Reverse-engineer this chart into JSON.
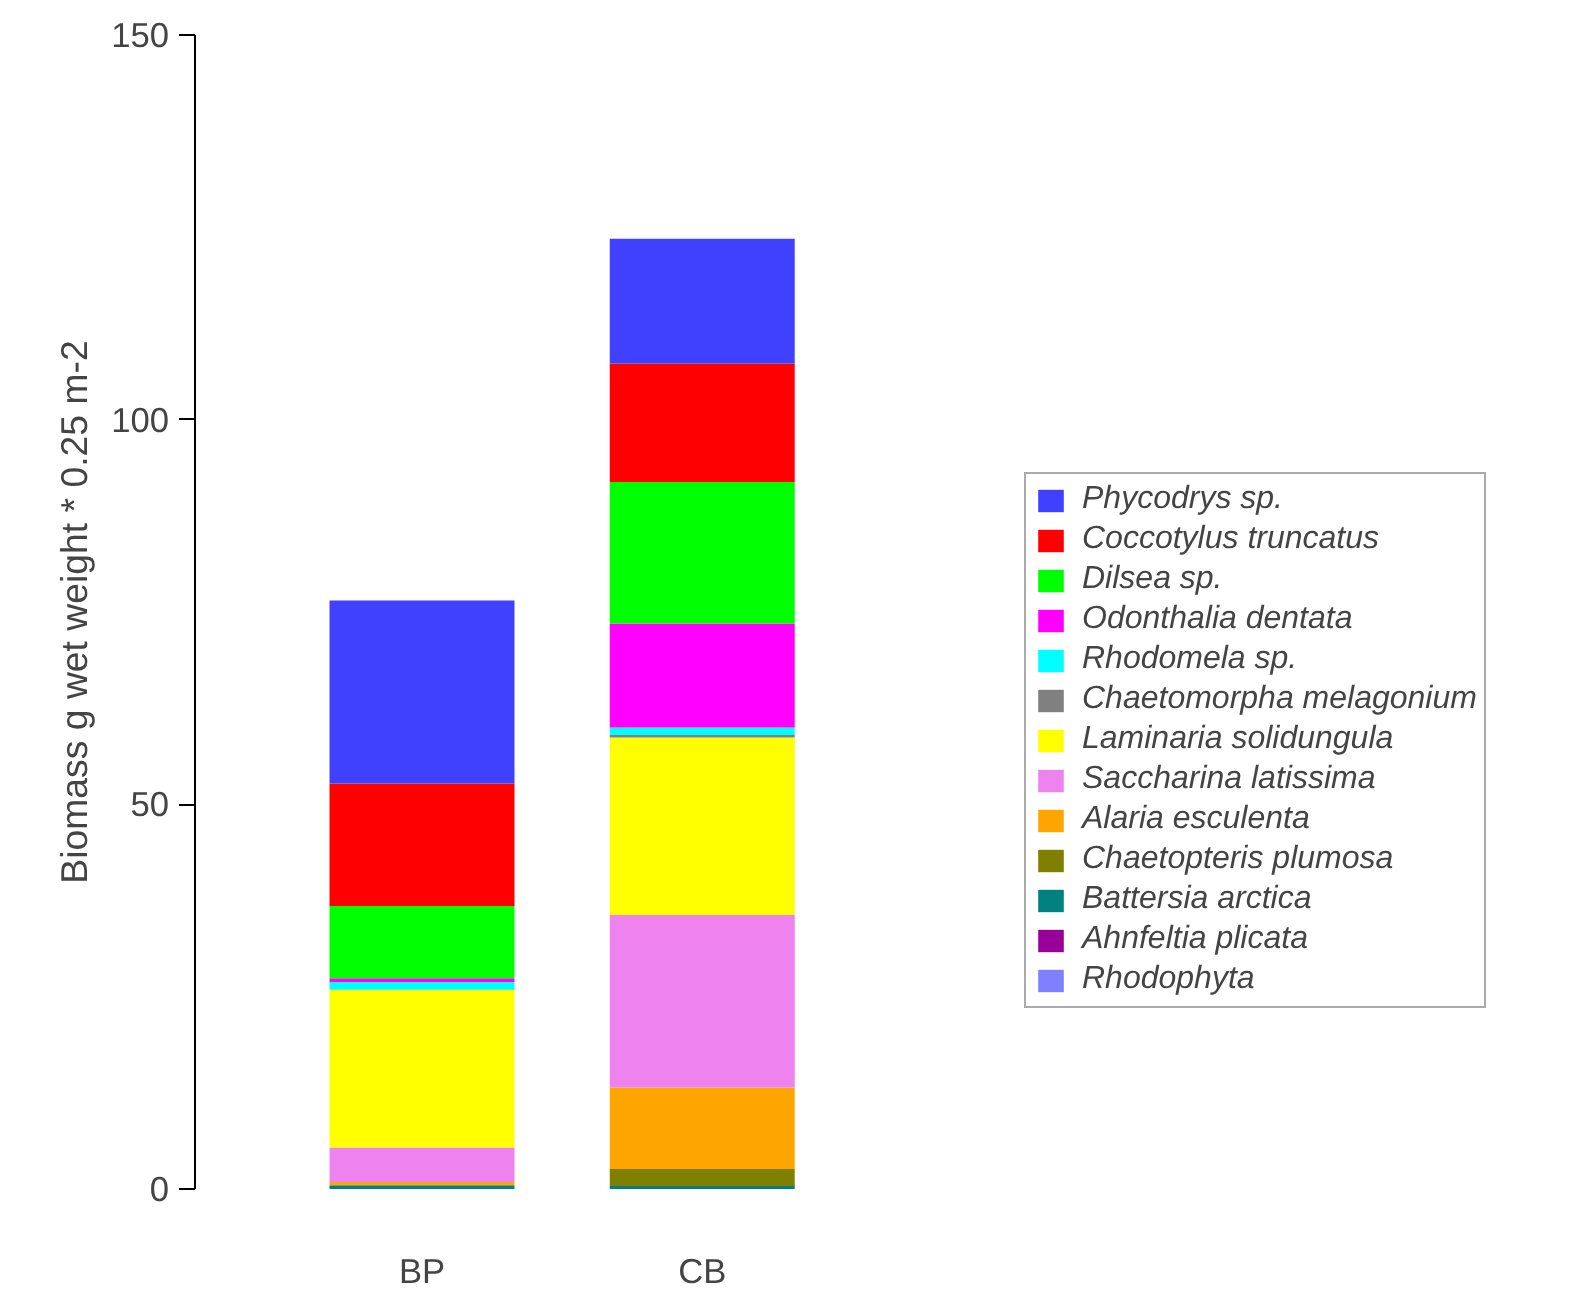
{
  "chart_data": {
    "type": "bar",
    "stacked": true,
    "ylabel": "Biomass g wet weight * 0.25 m-2",
    "categories": [
      "BP",
      "CB"
    ],
    "series": [
      {
        "name": "Rhodophyta",
        "color": "#8080ff",
        "values": [
          0,
          0
        ]
      },
      {
        "name": "Ahnfeltia plicata",
        "color": "#990099",
        "values": [
          0,
          0
        ]
      },
      {
        "name": "Battersia arctica",
        "color": "#008080",
        "values": [
          0.5,
          0.4
        ]
      },
      {
        "name": "Chaetopteris plumosa",
        "color": "#808000",
        "values": [
          0,
          2.2
        ]
      },
      {
        "name": "Alaria esculenta",
        "color": "#ffa500",
        "values": [
          0.4,
          10.6
        ]
      },
      {
        "name": "Saccharina latissima",
        "color": "#ee82ee",
        "values": [
          4.5,
          22.4
        ]
      },
      {
        "name": "Laminaria solidungula",
        "color": "#ffff00",
        "values": [
          20.5,
          23.1
        ]
      },
      {
        "name": "Chaetomorpha melagonium",
        "color": "#808080",
        "values": [
          0,
          0.3
        ]
      },
      {
        "name": "Rhodomela sp.",
        "color": "#00ffff",
        "values": [
          1.0,
          1.0
        ]
      },
      {
        "name": "Odonthalia dentata",
        "color": "#ff00ff",
        "values": [
          0.5,
          13.5
        ]
      },
      {
        "name": "Dilsea sp.",
        "color": "#00ff00",
        "values": [
          9.4,
          18.4
        ]
      },
      {
        "name": "Coccotylus truncatus",
        "color": "#ff0000",
        "values": [
          15.9,
          15.4
        ]
      },
      {
        "name": "Phycodrys sp.",
        "color": "#4040ff",
        "values": [
          23.8,
          16.2
        ]
      }
    ],
    "ylim": [
      0,
      150
    ],
    "yticks": [
      0,
      50,
      100,
      150
    ],
    "legend": "right"
  }
}
